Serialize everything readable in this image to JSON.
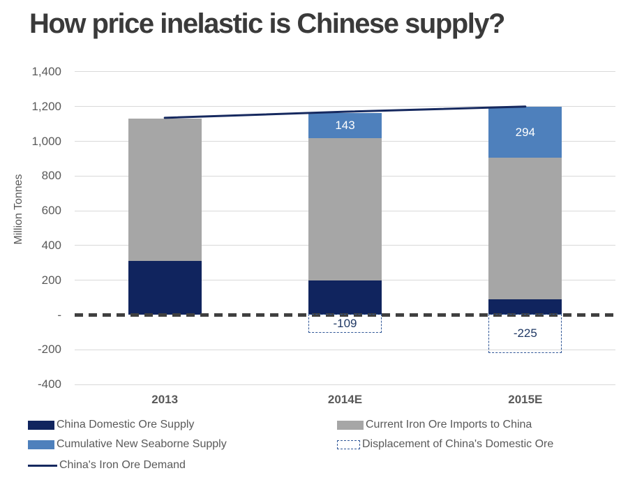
{
  "title": "How price inelastic is Chinese supply?",
  "chart_data": {
    "type": "bar",
    "stacked": true,
    "title": "How price inelastic is Chinese supply?",
    "ylabel": "Million Tonnes",
    "ylim": [
      -400,
      1400
    ],
    "ytick_step": 200,
    "grid": true,
    "legend_position": "bottom",
    "categories": [
      "2013",
      "2014E",
      "2015E"
    ],
    "series": [
      {
        "key": "domestic",
        "name": "China Domestic Ore Supply",
        "values": [
          310,
          200,
          90
        ],
        "labels": [
          "",
          "",
          ""
        ]
      },
      {
        "key": "imports",
        "name": "Current Iron Ore Imports to China",
        "values": [
          820,
          820,
          815
        ],
        "labels": [
          "",
          "",
          ""
        ]
      },
      {
        "key": "seaborne",
        "name": "Cumulative New Seaborne Supply",
        "values": [
          0,
          143,
          294
        ],
        "labels": [
          "",
          "143",
          "294"
        ]
      }
    ],
    "line_series": {
      "name": "China's Iron Ore Demand",
      "values": [
        1135,
        1170,
        1200
      ]
    },
    "displacement": {
      "name": "Displacement of China's Domestic Ore",
      "values": [
        null,
        -109,
        -225
      ],
      "labels": [
        "",
        "-109",
        "-225"
      ]
    },
    "yticks": [
      {
        "value": 1400,
        "label": "1,400"
      },
      {
        "value": 1200,
        "label": "1,200"
      },
      {
        "value": 1000,
        "label": "1,000"
      },
      {
        "value": 800,
        "label": "800"
      },
      {
        "value": 600,
        "label": "600"
      },
      {
        "value": 400,
        "label": "400"
      },
      {
        "value": 200,
        "label": "200"
      },
      {
        "value": 0,
        "label": "-"
      },
      {
        "value": -200,
        "label": "-200"
      },
      {
        "value": -400,
        "label": "-400"
      }
    ]
  },
  "colors": {
    "domestic": "#10245E",
    "imports": "#A6A6A6",
    "seaborne": "#4E80BC",
    "line": "#16295F",
    "displacement_border": "#2E5596",
    "displacement_text": "#1F3864",
    "zero_line": "#404040",
    "gridline": "#D9D9D9",
    "axis_text": "#595959",
    "title_text": "#3A3A3A"
  },
  "legend": {
    "items": [
      {
        "label": "China Domestic Ore Supply",
        "swatch": "bar",
        "color_key": "domestic"
      },
      {
        "label": "Current Iron Ore Imports to China",
        "swatch": "bar",
        "color_key": "imports"
      },
      {
        "label": "Cumulative New Seaborne Supply",
        "swatch": "bar",
        "color_key": "seaborne"
      },
      {
        "label": "Displacement of China's Domestic Ore",
        "swatch": "dashed-box"
      },
      {
        "label": "China's Iron Ore Demand",
        "swatch": "line",
        "color_key": "line"
      }
    ]
  }
}
